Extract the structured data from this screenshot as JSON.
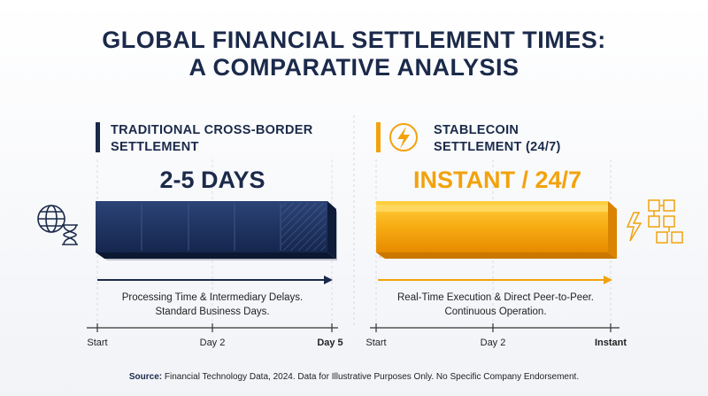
{
  "title": [
    "GLOBAL FINANCIAL SETTLEMENT TIMES:",
    "A COMPARATIVE ANALYSIS"
  ],
  "panels": [
    {
      "heading": [
        "TRADITIONAL CROSS-BORDER",
        "SETTLEMENT"
      ],
      "headline": "2-5 DAYS",
      "note": [
        "Processing Time & Intermediary Delays.",
        "Standard Business Days."
      ],
      "axis": [
        "Start",
        "Day 2",
        "Day 5"
      ]
    },
    {
      "heading": [
        "STABLECOIN",
        "SETTLEMENT (24/7)"
      ],
      "headline": "INSTANT / 24/7",
      "note": [
        "Real-Time Execution & Direct Peer-to-Peer.",
        "Continuous Operation."
      ],
      "axis": [
        "Start",
        "Day 2",
        "Instant"
      ]
    }
  ],
  "source": {
    "label": "Source:",
    "text": " Financial Technology Data, 2024. Data for Illustrative Purposes Only. No Specific Company Endorsement."
  }
}
